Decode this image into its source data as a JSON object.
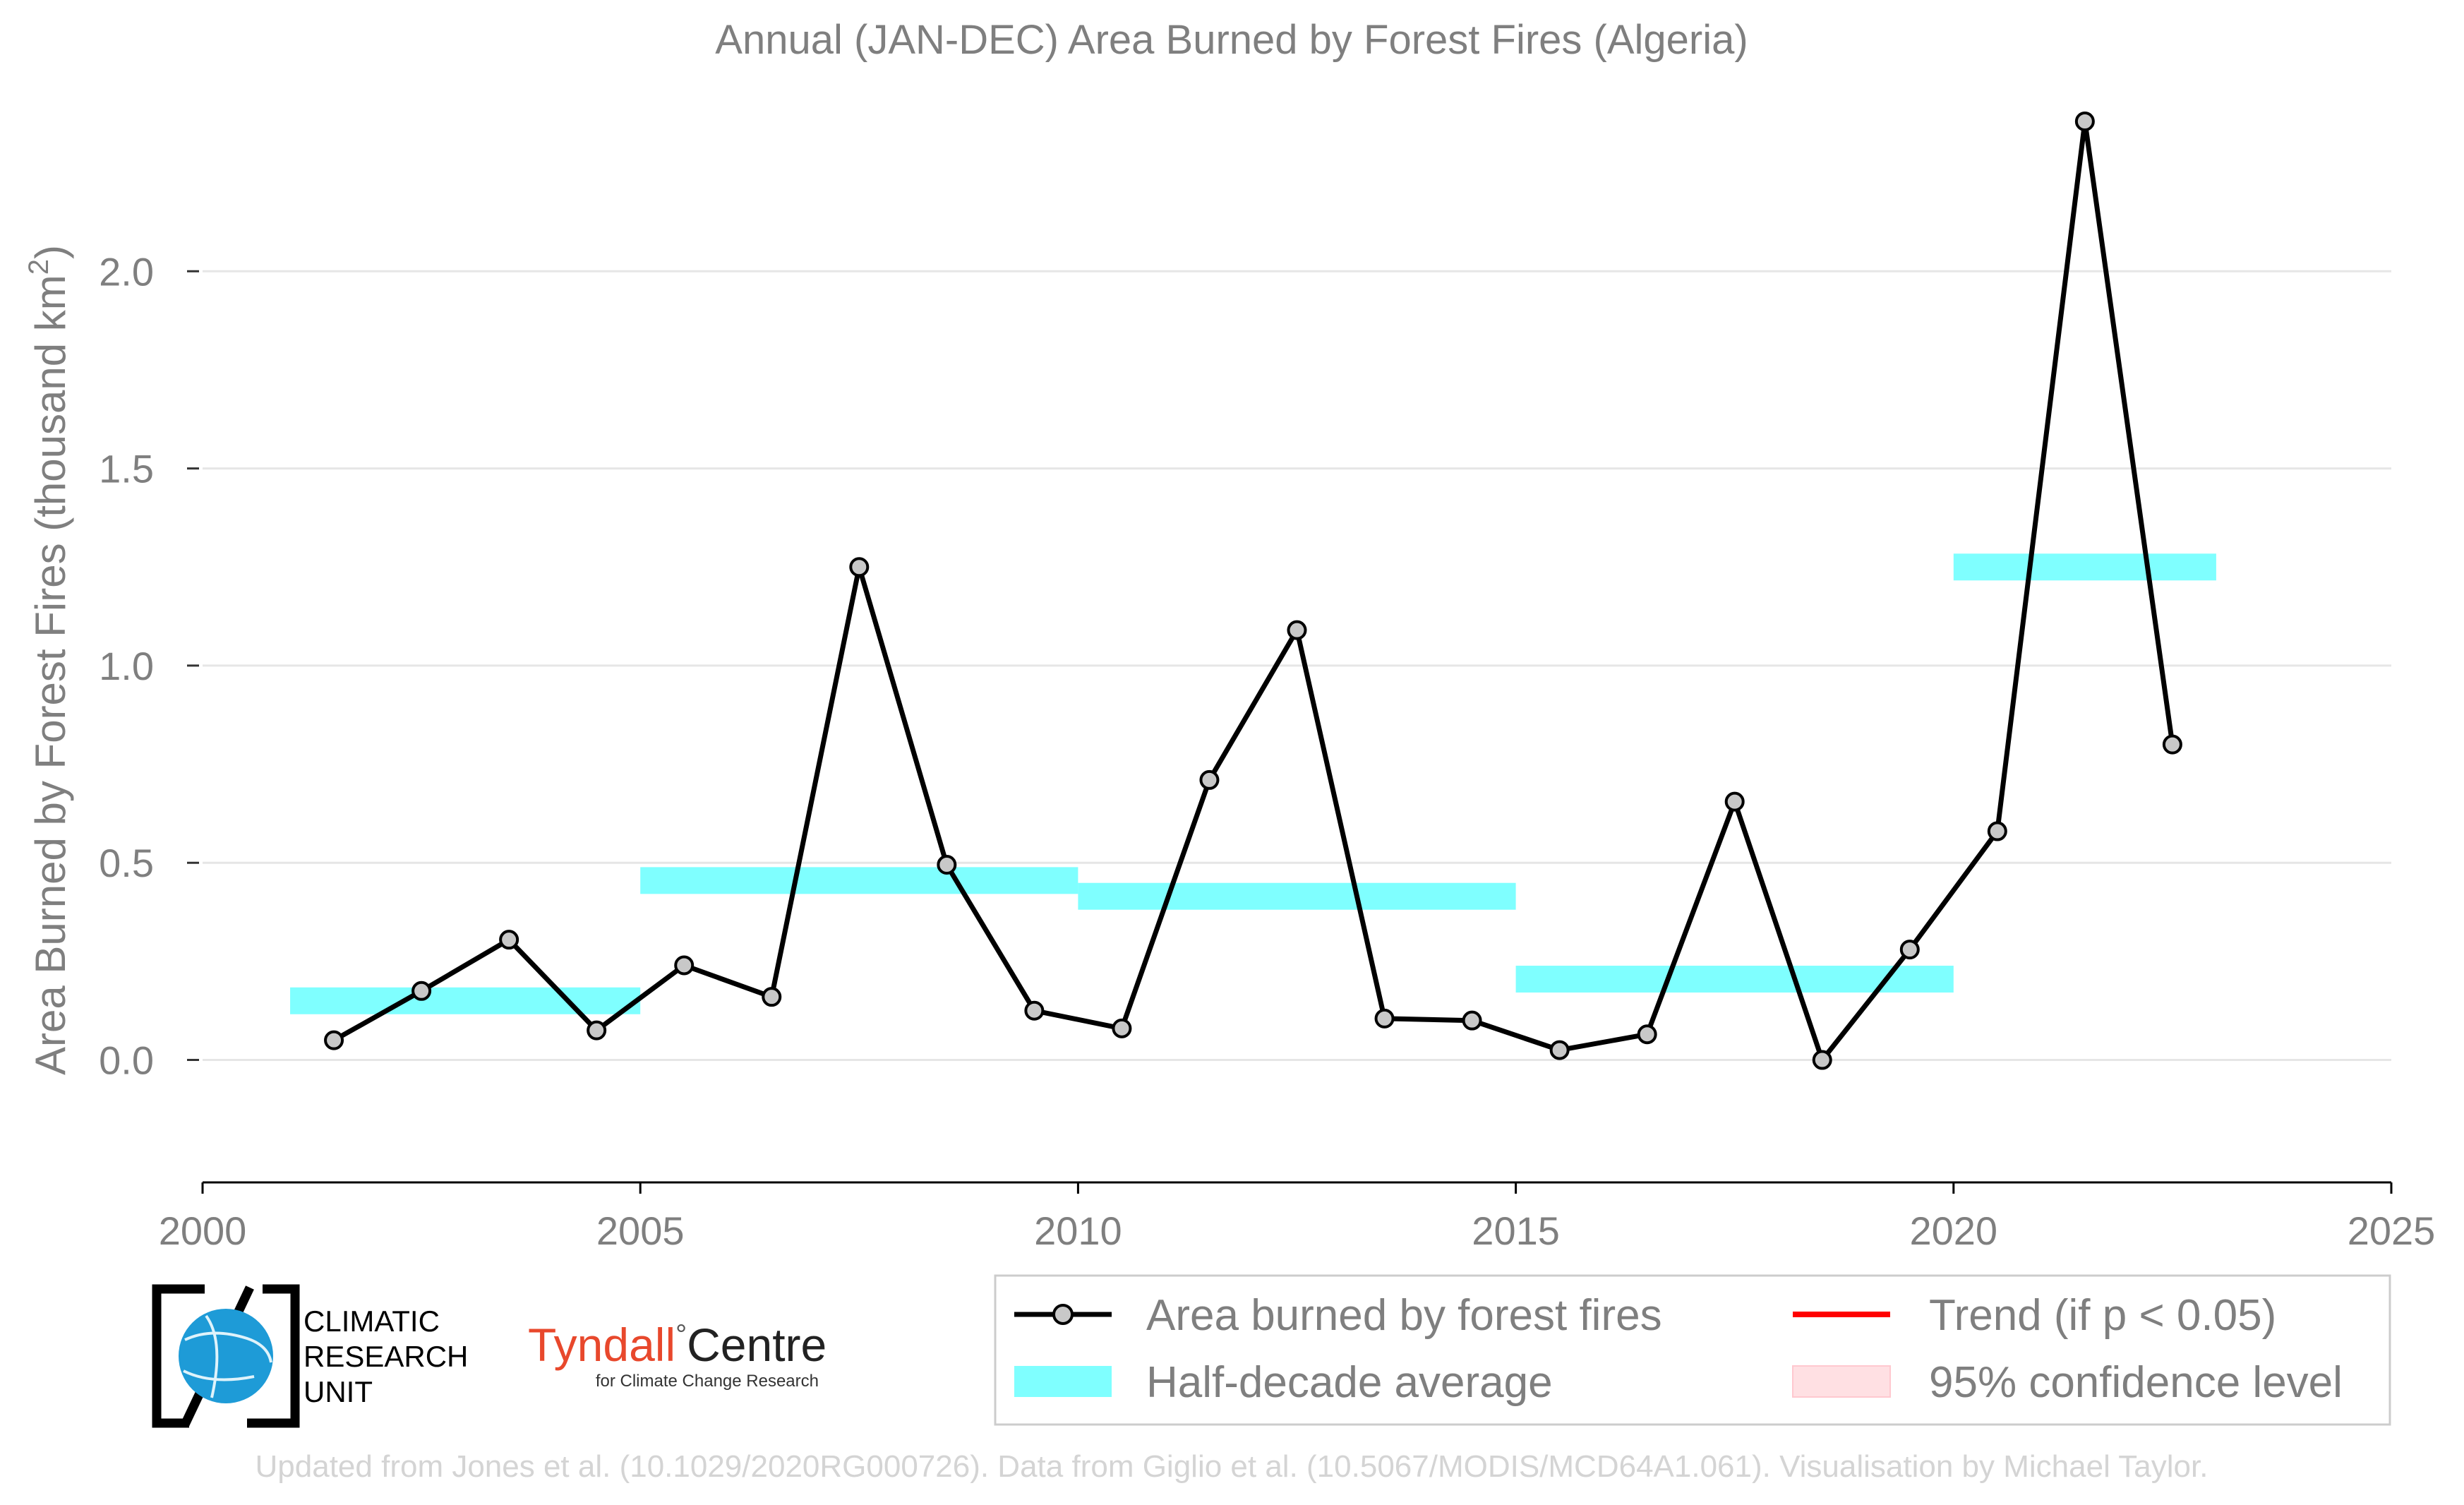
{
  "chart_data": {
    "type": "line",
    "title": "Annual (JAN-DEC) Area Burned by Forest Fires (Algeria)",
    "ylabel_main": "Area Burned by Forest Fires (thousand km",
    "ylabel_sup": "2",
    "ylabel_close": ")",
    "xlim": [
      2000,
      2025
    ],
    "ylim": [
      -0.11,
      2.38
    ],
    "x_ticks": [
      2000,
      2005,
      2010,
      2015,
      2020,
      2025
    ],
    "x_tick_labels": [
      "2000",
      "2005",
      "2010",
      "2015",
      "2020",
      "2025"
    ],
    "y_ticks": [
      0.0,
      0.5,
      1.0,
      1.5,
      2.0
    ],
    "y_tick_labels": [
      "0.0",
      "0.5",
      "1.0",
      "1.5",
      "2.0"
    ],
    "grid": true,
    "series": [
      {
        "name": "Area burned by forest fires",
        "x": [
          2001.5,
          2002.5,
          2003.5,
          2004.5,
          2005.5,
          2006.5,
          2007.5,
          2008.5,
          2009.5,
          2010.5,
          2011.5,
          2012.5,
          2013.5,
          2014.5,
          2015.5,
          2016.5,
          2017.5,
          2018.5,
          2019.5,
          2020.5,
          2021.5,
          2022.5
        ],
        "values": [
          0.05,
          0.175,
          0.305,
          0.075,
          0.24,
          0.16,
          1.25,
          0.495,
          0.125,
          0.08,
          0.71,
          1.09,
          0.105,
          0.1,
          0.025,
          0.065,
          0.655,
          0.0,
          0.28,
          0.58,
          2.38,
          0.8
        ]
      },
      {
        "name": "Half-decade average",
        "segments": [
          {
            "x_start": 2001,
            "x_end": 2005,
            "value": 0.15
          },
          {
            "x_start": 2005,
            "x_end": 2010,
            "value": 0.455
          },
          {
            "x_start": 2010,
            "x_end": 2015,
            "value": 0.415
          },
          {
            "x_start": 2015,
            "x_end": 2020,
            "value": 0.205
          },
          {
            "x_start": 2020,
            "x_end": 2023,
            "value": 1.25
          }
        ]
      }
    ],
    "legend": {
      "placement": "bottom-right",
      "items": [
        {
          "label": "Area burned by forest fires",
          "marker": "line-with-circle",
          "color": "#000000"
        },
        {
          "label": "Trend (if p < 0.05)",
          "marker": "line",
          "color": "#ff0000"
        },
        {
          "label": "Half-decade average",
          "marker": "band",
          "color": "#7fffff"
        },
        {
          "label": "95% confidence level",
          "marker": "band",
          "color": "#ffe0e3"
        }
      ]
    },
    "colors": {
      "line": "#000000",
      "marker_fill": "#c8c8c8",
      "band": "#7fffff",
      "grid": "#e6e6e6",
      "text": "#7f7f7f"
    }
  },
  "logos": {
    "cru_line1": "CLIMATIC",
    "cru_line2": "RESEARCH",
    "cru_line3": "UNIT",
    "tyndall_main": "Tyndall",
    "tyndall_degree": "°",
    "tyndall_centre": "Centre",
    "tyndall_sub": "for Climate Change Research"
  },
  "footer": "Updated from Jones et al. (10.1029/2020RG000726). Data from Giglio et al. (10.5067/MODIS/MCD64A1.061). Visualisation by Michael Taylor."
}
